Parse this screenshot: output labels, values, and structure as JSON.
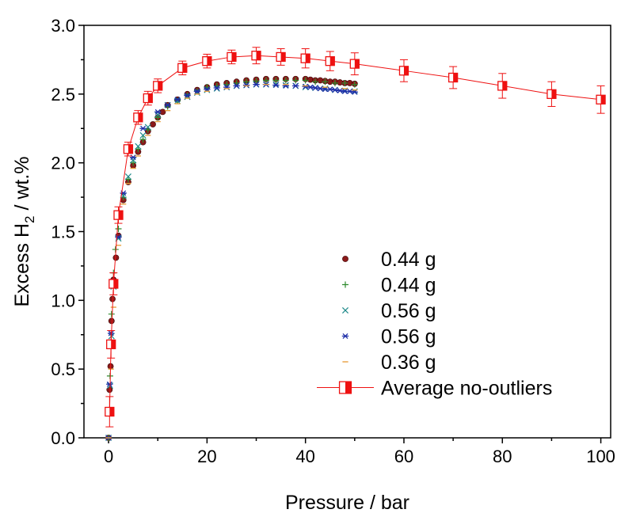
{
  "chart_data": {
    "type": "scatter",
    "title": "",
    "xlabel": "Pressure / bar",
    "ylabel": {
      "main": "Excess H",
      "sub": "2",
      "tail": " / wt.%"
    },
    "xlim": [
      -5,
      102
    ],
    "ylim": [
      0.0,
      3.0
    ],
    "x_ticks": [
      0,
      20,
      40,
      60,
      80,
      100
    ],
    "y_ticks": [
      "0.0",
      "0.5",
      "1.0",
      "1.5",
      "2.0",
      "2.5",
      "3.0"
    ],
    "grid": false,
    "legend_position": "bottom-right",
    "series": [
      {
        "name": "0.44 g",
        "marker": "sphere",
        "color": "#8b1a1a",
        "x": [
          0,
          0.2,
          0.4,
          0.6,
          0.8,
          1.0,
          1.5,
          2,
          3,
          4,
          5,
          6,
          7,
          8,
          9,
          10,
          11,
          12,
          14,
          16,
          18,
          20,
          22,
          24,
          26,
          28,
          30,
          32,
          34,
          36,
          38,
          40,
          41,
          42,
          43,
          44,
          45,
          46,
          47,
          48,
          49,
          50
        ],
        "y": [
          0.0,
          0.35,
          0.52,
          0.85,
          1.01,
          1.15,
          1.31,
          1.47,
          1.73,
          1.86,
          1.98,
          2.08,
          2.15,
          2.23,
          2.28,
          2.33,
          2.37,
          2.42,
          2.46,
          2.5,
          2.53,
          2.55,
          2.57,
          2.58,
          2.59,
          2.6,
          2.605,
          2.61,
          2.61,
          2.61,
          2.61,
          2.61,
          2.605,
          2.6,
          2.6,
          2.595,
          2.59,
          2.59,
          2.585,
          2.58,
          2.58,
          2.575
        ]
      },
      {
        "name": "0.44 g",
        "marker": "plus",
        "color": "#2e8b2e",
        "x": [
          0,
          0.3,
          0.6,
          1.0,
          1.4,
          2,
          3,
          4,
          5,
          6,
          7,
          8,
          10,
          12,
          14,
          16,
          18,
          20,
          22,
          24,
          26,
          28,
          30,
          32,
          34,
          36,
          38,
          40,
          42,
          44,
          46,
          48,
          50
        ],
        "y": [
          0.0,
          0.45,
          0.9,
          1.2,
          1.37,
          1.52,
          1.75,
          1.88,
          2.0,
          2.1,
          2.17,
          2.24,
          2.33,
          2.41,
          2.45,
          2.49,
          2.52,
          2.55,
          2.56,
          2.57,
          2.58,
          2.59,
          2.595,
          2.6,
          2.6,
          2.6,
          2.6,
          2.6,
          2.59,
          2.59,
          2.58,
          2.58,
          2.57
        ]
      },
      {
        "name": "0.56 g",
        "marker": "x",
        "color": "#1f8a8a",
        "x": [
          0,
          0.3,
          0.6,
          1.0,
          2,
          3,
          4,
          5,
          6,
          7,
          8,
          10,
          12,
          14,
          16,
          18,
          20,
          22,
          24,
          26,
          28,
          30,
          32,
          34,
          36,
          38,
          40,
          42,
          44,
          46,
          48,
          50
        ],
        "y": [
          0.0,
          0.38,
          0.74,
          1.1,
          1.45,
          1.76,
          1.9,
          2.02,
          2.12,
          2.2,
          2.26,
          2.35,
          2.42,
          2.45,
          2.48,
          2.51,
          2.53,
          2.54,
          2.55,
          2.56,
          2.565,
          2.57,
          2.57,
          2.57,
          2.565,
          2.56,
          2.55,
          2.545,
          2.54,
          2.53,
          2.525,
          2.52
        ]
      },
      {
        "name": "0.56 g",
        "marker": "asterisk",
        "color": "#1f2fa8",
        "x": [
          0,
          0.2,
          0.5,
          2,
          3,
          5,
          7,
          10,
          12,
          14,
          16,
          18,
          20,
          22,
          24,
          26,
          28,
          30,
          32,
          34,
          36,
          38,
          40,
          41,
          42,
          43,
          44,
          45,
          46,
          47,
          48,
          49,
          50
        ],
        "y": [
          0.0,
          0.39,
          0.76,
          1.46,
          1.78,
          2.04,
          2.25,
          2.37,
          2.42,
          2.46,
          2.49,
          2.52,
          2.535,
          2.545,
          2.55,
          2.56,
          2.565,
          2.57,
          2.57,
          2.565,
          2.56,
          2.56,
          2.555,
          2.55,
          2.545,
          2.54,
          2.535,
          2.535,
          2.53,
          2.525,
          2.52,
          2.52,
          2.515
        ]
      },
      {
        "name": "0.36 g",
        "marker": "dash",
        "color": "#e8a040",
        "x": [
          0,
          0.5,
          1.0,
          2,
          3,
          4,
          5,
          6,
          8,
          10,
          12,
          14,
          16,
          18,
          20,
          24,
          28,
          32,
          36,
          40,
          44,
          48,
          50
        ],
        "y": [
          0.0,
          0.5,
          0.95,
          1.4,
          1.7,
          1.85,
          1.96,
          2.05,
          2.2,
          2.3,
          2.38,
          2.43,
          2.47,
          2.5,
          2.52,
          2.54,
          2.56,
          2.57,
          2.57,
          2.56,
          2.55,
          2.54,
          2.53
        ]
      },
      {
        "name": "Average no-outliers",
        "marker": "half-square",
        "color": "#ee1111",
        "line": true,
        "x": [
          0.2,
          0.5,
          1.0,
          2,
          4,
          6,
          8,
          10,
          15,
          20,
          25,
          30,
          35,
          40,
          45,
          50,
          60,
          70,
          80,
          90,
          100
        ],
        "y": [
          0.19,
          0.68,
          1.12,
          1.62,
          2.1,
          2.33,
          2.47,
          2.56,
          2.69,
          2.74,
          2.77,
          2.78,
          2.77,
          2.76,
          2.74,
          2.72,
          2.67,
          2.62,
          2.56,
          2.5,
          2.46
        ],
        "err": [
          0.11,
          0.1,
          0.08,
          0.06,
          0.05,
          0.05,
          0.05,
          0.05,
          0.05,
          0.05,
          0.05,
          0.06,
          0.06,
          0.07,
          0.07,
          0.08,
          0.08,
          0.08,
          0.09,
          0.09,
          0.1
        ]
      }
    ]
  }
}
